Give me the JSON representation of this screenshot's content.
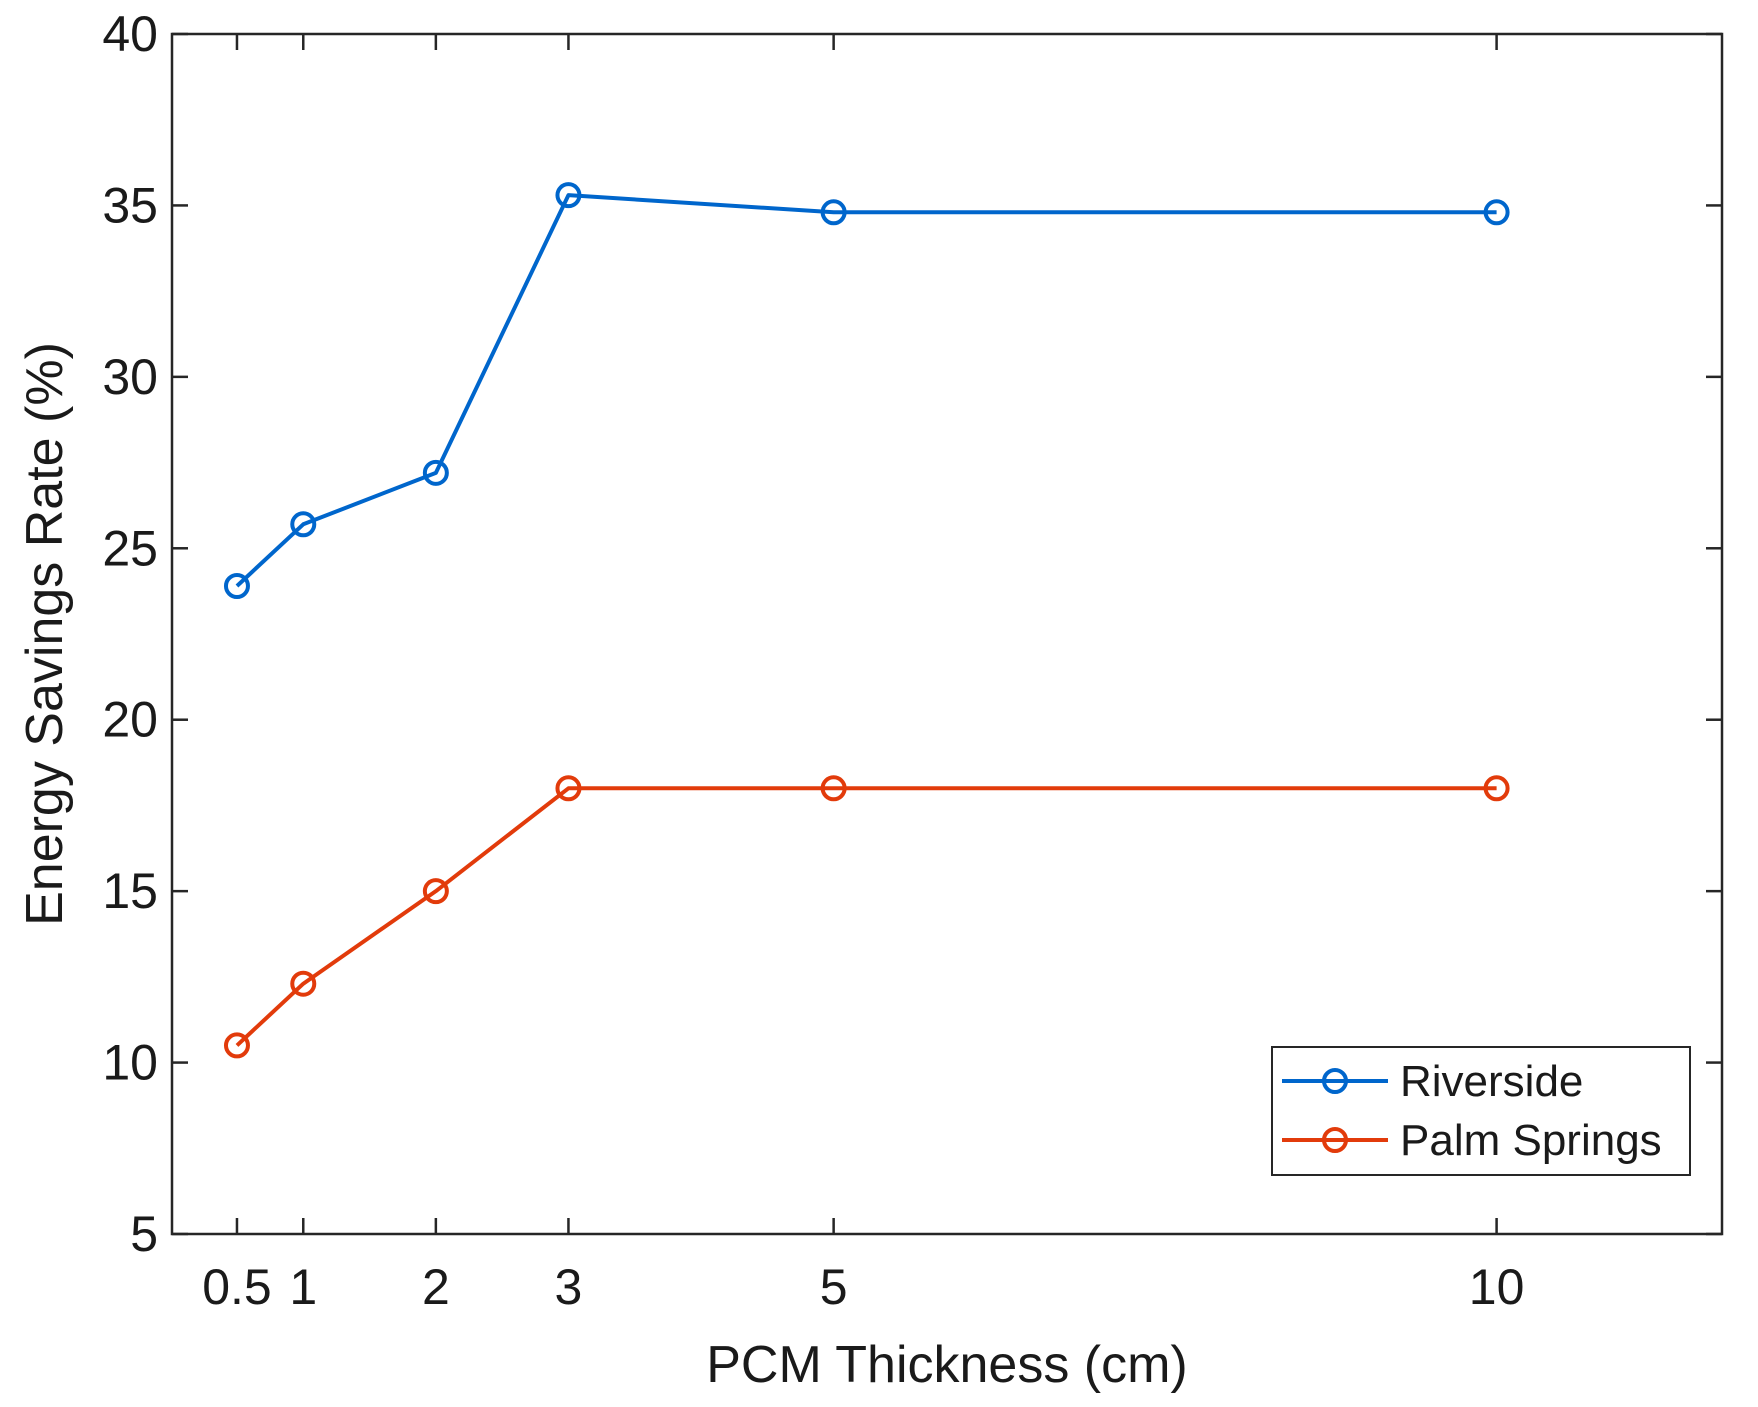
{
  "chart_data": {
    "type": "line",
    "title": "",
    "xlabel": "PCM Thickness (cm)",
    "ylabel": "Energy Savings Rate (%)",
    "x_ticks": [
      0.5,
      1,
      2,
      3,
      5,
      10
    ],
    "x_tick_labels": [
      "0.5",
      "1",
      "2",
      "3",
      "5",
      "10"
    ],
    "y_ticks": [
      5,
      10,
      15,
      20,
      25,
      30,
      35,
      40
    ],
    "y_tick_labels": [
      "5",
      "10",
      "15",
      "20",
      "25",
      "30",
      "35",
      "40"
    ],
    "ylim": [
      5,
      40
    ],
    "x_scale": "categorical-like positions (0.5, 1, 2, 3, 5, 10)",
    "grid": false,
    "legend_position": "bottom-right",
    "series": [
      {
        "name": "Riverside",
        "color": "#0066cc",
        "marker": "circle-open",
        "x": [
          0.5,
          1,
          2,
          3,
          5,
          10
        ],
        "values": [
          23.9,
          25.7,
          27.2,
          35.3,
          34.8,
          34.8
        ]
      },
      {
        "name": "Palm Springs",
        "color": "#e23b0b",
        "marker": "circle-open",
        "x": [
          0.5,
          1,
          2,
          3,
          5,
          10
        ],
        "values": [
          10.5,
          12.3,
          15.0,
          18.0,
          18.0,
          18.0
        ]
      }
    ]
  }
}
